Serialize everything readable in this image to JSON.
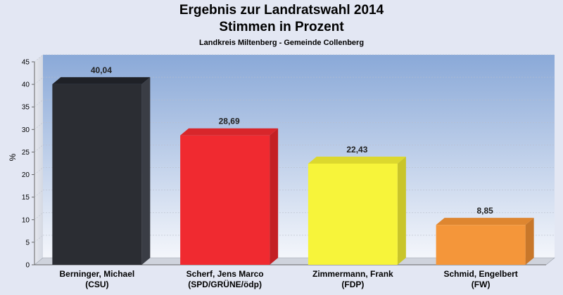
{
  "chart_data": {
    "type": "bar",
    "title": "Ergebnis zur Landratswahl 2014",
    "subtitle": "Stimmen in Prozent",
    "caption": "Landkreis Miltenberg - Gemeinde Collenberg",
    "ylabel": "%",
    "ylim": [
      0,
      45
    ],
    "yticks": [
      0,
      5,
      10,
      15,
      20,
      25,
      30,
      35,
      40,
      45
    ],
    "grid": true,
    "categories": [
      [
        "Berninger, Michael",
        "(CSU)"
      ],
      [
        "Scherf, Jens Marco",
        "(SPD/GRÜNE/ödp)"
      ],
      [
        "Zimmermann, Frank",
        "(FDP)"
      ],
      [
        "Schmid, Engelbert",
        "(FW)"
      ]
    ],
    "values": [
      40.04,
      28.69,
      22.43,
      8.85
    ],
    "value_labels": [
      "40,04",
      "28,69",
      "22,43",
      "8,85"
    ],
    "colors": [
      "#2b2d33",
      "#f02a30",
      "#f7f43a",
      "#f4963a"
    ],
    "side_colors": [
      "#3a3d45",
      "#c42024",
      "#c9c52a",
      "#c8772a"
    ],
    "top_colors": [
      "#1f2127",
      "#d8262b",
      "#dcd82e",
      "#de8630"
    ]
  }
}
